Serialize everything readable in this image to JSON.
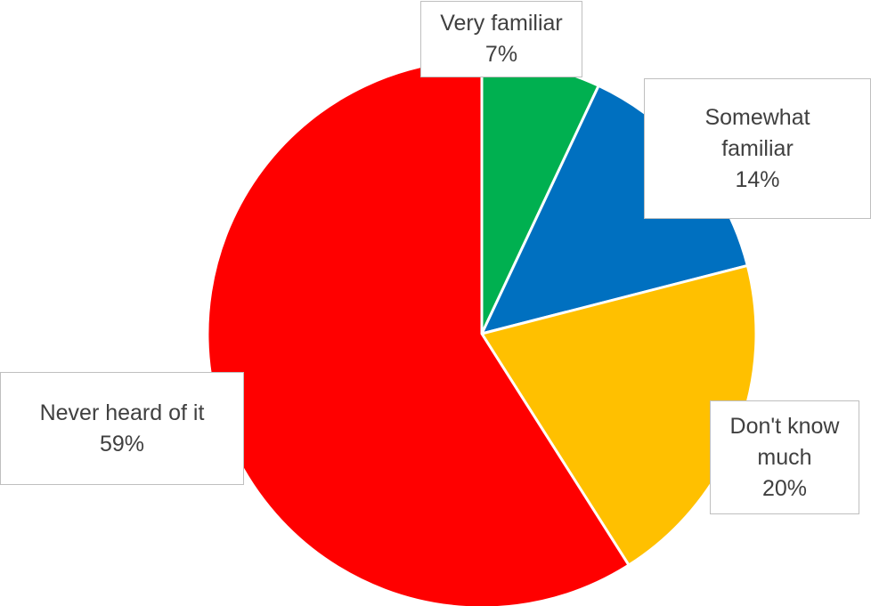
{
  "chart_data": {
    "type": "pie",
    "title": "",
    "start_angle_deg": 0,
    "direction": "clockwise",
    "slices": [
      {
        "label": "Very familiar",
        "label_lines": [
          "Very familiar"
        ],
        "value": 7,
        "value_label": "7%",
        "color": "#00b050"
      },
      {
        "label": "Somewhat familiar",
        "label_lines": [
          "Somewhat",
          "familiar"
        ],
        "value": 14,
        "value_label": "14%",
        "color": "#0070c0"
      },
      {
        "label": "Don't know much",
        "label_lines": [
          "Don't know",
          "much"
        ],
        "value": 20,
        "value_label": "20%",
        "color": "#ffc000"
      },
      {
        "label": "Never heard of it",
        "label_lines": [
          "Never heard of it"
        ],
        "value": 59,
        "value_label": "59%",
        "color": "#ff0000"
      }
    ]
  }
}
